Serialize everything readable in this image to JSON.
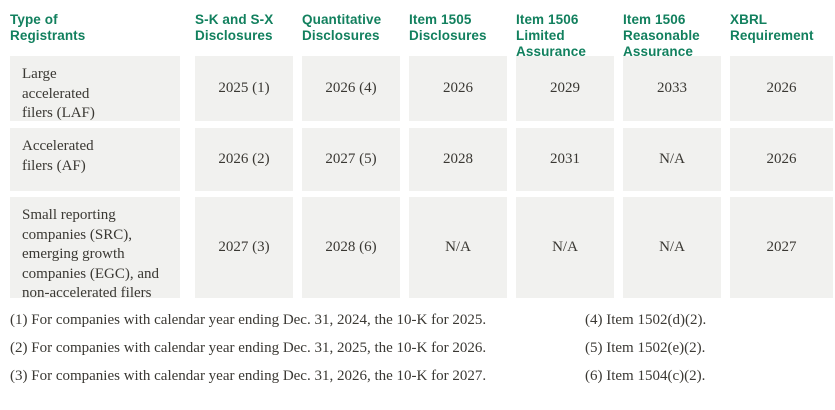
{
  "colors": {
    "header_text": "#12805e",
    "cell_background": "#f1f1ef",
    "body_text": "#3a3833",
    "page_background": "#ffffff"
  },
  "table": {
    "headers": [
      {
        "label": "Type of\nRegistrants"
      },
      {
        "label": "S-K and S-X\nDisclosures"
      },
      {
        "label": "Quantitative\nDisclosures"
      },
      {
        "label": "Item 1505\nDisclosures"
      },
      {
        "label": "Item 1506\nLimited\nAssurance"
      },
      {
        "label": "Item 1506\nReasonable\nAssurance"
      },
      {
        "label": "XBRL\nRequirement"
      }
    ],
    "rows": [
      {
        "registrant_type": "Large\naccelerated\nfilers (LAF)",
        "values": [
          "2025 (1)",
          "2026 (4)",
          "2026",
          "2029",
          "2033",
          "2026"
        ]
      },
      {
        "registrant_type": "Accelerated\nfilers (AF)",
        "values": [
          "2026 (2)",
          "2027 (5)",
          "2028",
          "2031",
          "N/A",
          "2026"
        ]
      },
      {
        "registrant_type": "Small reporting\ncompanies (SRC),\nemerging growth\ncompanies (EGC), and\nnon-accelerated filers",
        "values": [
          "2027 (3)",
          "2028 (6)",
          "N/A",
          "N/A",
          "N/A",
          "2027"
        ]
      }
    ]
  },
  "footnotes": {
    "left": [
      "(1) For companies with calendar year ending Dec. 31, 2024, the 10-K for 2025.",
      "(2) For companies with calendar year ending Dec. 31, 2025, the 10-K for 2026.",
      "(3) For companies with calendar year ending Dec. 31, 2026, the 10-K for 2027."
    ],
    "right": [
      "(4) Item 1502(d)(2).",
      "(5) Item 1502(e)(2).",
      "(6) Item 1504(c)(2)."
    ]
  }
}
